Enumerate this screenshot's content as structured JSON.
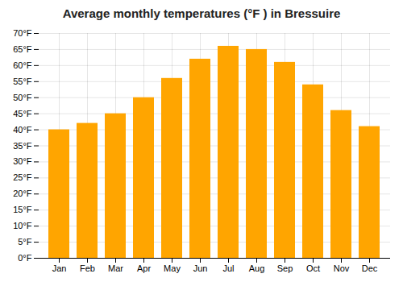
{
  "chart_data": {
    "type": "bar",
    "title": "Average monthly temperatures (°F ) in Bressuire",
    "categories": [
      "Jan",
      "Feb",
      "Mar",
      "Apr",
      "May",
      "Jun",
      "Jul",
      "Aug",
      "Sep",
      "Oct",
      "Nov",
      "Dec"
    ],
    "values": [
      40,
      42,
      45,
      50,
      56,
      62,
      66,
      65,
      61,
      54,
      46,
      41
    ],
    "color": "#FFA500",
    "ylim": [
      0,
      70
    ],
    "yticks": [
      {
        "value": 0,
        "label": "0°F"
      },
      {
        "value": 5,
        "label": "5°F"
      },
      {
        "value": 10,
        "label": "10°F"
      },
      {
        "value": 15,
        "label": "15°F"
      },
      {
        "value": 20,
        "label": "20°F"
      },
      {
        "value": 25,
        "label": "25°F"
      },
      {
        "value": 30,
        "label": "30°F"
      },
      {
        "value": 35,
        "label": "35°F"
      },
      {
        "value": 40,
        "label": "40°F"
      },
      {
        "value": 45,
        "label": "45°F"
      },
      {
        "value": 50,
        "label": "50°F"
      },
      {
        "value": 55,
        "label": "55°F"
      },
      {
        "value": 60,
        "label": "60°F"
      },
      {
        "value": 65,
        "label": "65°F"
      },
      {
        "value": 70,
        "label": "70°F"
      }
    ],
    "grid": true
  }
}
